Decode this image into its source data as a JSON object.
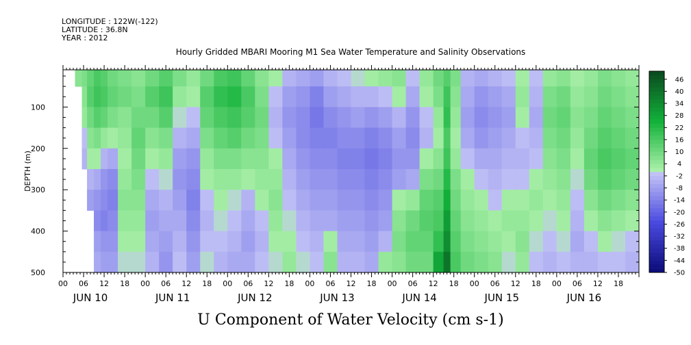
{
  "header": {
    "longitude": "LONGITUDE : 122W(-122)",
    "latitude": "LATITUDE : 36.8N",
    "year": "YEAR : 2012"
  },
  "chart_data": {
    "type": "heatmap",
    "title": "Hourly Gridded MBARI Mooring M1 Sea Water Temperature and Salinity Observations",
    "xlabel": "U Component of Water Velocity (cm s-1)",
    "ylabel": "DEPTH (m)",
    "y_axis": {
      "range": [
        10,
        500
      ],
      "inverted": true,
      "ticks": [
        100,
        200,
        300,
        400,
        500
      ]
    },
    "x_axis": {
      "range_hours": [
        0,
        168
      ],
      "hour_ticks": [
        "00",
        "06",
        "12",
        "18"
      ],
      "days": [
        "JUN 10",
        "JUN 11",
        "JUN 12",
        "JUN 13",
        "JUN 14",
        "JUN 15",
        "JUN 16"
      ]
    },
    "colorbar": {
      "min": -50,
      "max": 50,
      "labels": [
        46,
        40,
        34,
        28,
        22,
        16,
        10,
        4,
        -2,
        -8,
        -14,
        -20,
        -26,
        -32,
        -38,
        -44,
        -50
      ],
      "colors": {
        "strong_positive": "#0a4a1f",
        "positive": "#12b23a",
        "weak_positive": "#a8f0a8",
        "weak_negative": "#c2c2f6",
        "negative": "#4a4ae0",
        "strong_negative": "#0a0a78"
      }
    },
    "profile_columns": [
      {
        "hour": 2,
        "values": [
          null,
          null,
          null,
          null,
          null,
          null,
          null,
          null,
          null,
          null
        ]
      },
      {
        "hour": 5,
        "values": [
          6,
          null,
          null,
          null,
          null,
          null,
          null,
          null,
          null,
          null
        ]
      },
      {
        "hour": 6,
        "values": [
          8,
          6,
          4,
          -2,
          -4,
          null,
          null,
          null,
          null,
          null
        ]
      },
      {
        "hour": 8,
        "values": [
          12,
          14,
          10,
          6,
          2,
          -4,
          -8,
          null,
          null,
          null
        ]
      },
      {
        "hour": 10,
        "values": [
          16,
          18,
          14,
          8,
          2,
          -6,
          -10,
          -12,
          -8,
          -6
        ]
      },
      {
        "hour": 12,
        "values": [
          14,
          16,
          12,
          4,
          -4,
          -10,
          -12,
          -14,
          -10,
          -8
        ]
      },
      {
        "hour": 14,
        "values": [
          10,
          12,
          8,
          2,
          -6,
          -12,
          -14,
          -12,
          -10,
          -8
        ]
      },
      {
        "hour": 18,
        "values": [
          8,
          10,
          6,
          4,
          2,
          4,
          6,
          4,
          2,
          0
        ]
      },
      {
        "hour": 22,
        "values": [
          6,
          8,
          10,
          12,
          10,
          8,
          6,
          4,
          2,
          0
        ]
      },
      {
        "hour": 26,
        "values": [
          10,
          14,
          10,
          6,
          2,
          -2,
          -6,
          -8,
          -6,
          -4
        ]
      },
      {
        "hour": 30,
        "values": [
          14,
          18,
          14,
          8,
          4,
          0,
          -4,
          -6,
          -8,
          -10
        ]
      },
      {
        "hour": 34,
        "values": [
          8,
          4,
          0,
          -4,
          -8,
          -10,
          -8,
          -6,
          -4,
          -2
        ]
      },
      {
        "hour": 38,
        "values": [
          4,
          2,
          -2,
          -6,
          -10,
          -12,
          -14,
          -12,
          -10,
          -8
        ]
      },
      {
        "hour": 42,
        "values": [
          10,
          14,
          12,
          8,
          4,
          2,
          -2,
          -4,
          -2,
          0
        ]
      },
      {
        "hour": 46,
        "values": [
          16,
          20,
          16,
          12,
          8,
          4,
          2,
          0,
          -2,
          -4
        ]
      },
      {
        "hour": 50,
        "values": [
          18,
          22,
          18,
          14,
          8,
          4,
          0,
          -2,
          -4,
          -6
        ]
      },
      {
        "hour": 54,
        "values": [
          12,
          16,
          14,
          10,
          6,
          2,
          -4,
          -6,
          -8,
          -6
        ]
      },
      {
        "hour": 58,
        "values": [
          6,
          8,
          10,
          8,
          6,
          4,
          2,
          -2,
          -4,
          -2
        ]
      },
      {
        "hour": 62,
        "values": [
          2,
          -2,
          -4,
          -2,
          2,
          4,
          6,
          4,
          2,
          0
        ]
      },
      {
        "hour": 66,
        "values": [
          -4,
          -8,
          -10,
          -8,
          -6,
          -4,
          -2,
          0,
          2,
          4
        ]
      },
      {
        "hour": 70,
        "values": [
          -6,
          -10,
          -12,
          -12,
          -10,
          -8,
          -6,
          -4,
          -2,
          0
        ]
      },
      {
        "hour": 74,
        "values": [
          -8,
          -14,
          -16,
          -14,
          -12,
          -10,
          -8,
          -6,
          -4,
          -2
        ]
      },
      {
        "hour": 78,
        "values": [
          -4,
          -8,
          -12,
          -14,
          -12,
          -10,
          -8,
          -6,
          2,
          6
        ]
      },
      {
        "hour": 82,
        "values": [
          -2,
          -6,
          -10,
          -12,
          -14,
          -12,
          -10,
          -8,
          -6,
          -4
        ]
      },
      {
        "hour": 86,
        "values": [
          0,
          -4,
          -8,
          -12,
          -14,
          -12,
          -10,
          -8,
          -6,
          -4
        ]
      },
      {
        "hour": 90,
        "values": [
          2,
          -4,
          -10,
          -14,
          -16,
          -14,
          -12,
          -10,
          -8,
          -6
        ]
      },
      {
        "hour": 94,
        "values": [
          4,
          -2,
          -8,
          -12,
          -14,
          -12,
          -10,
          -8,
          -4,
          4
        ]
      },
      {
        "hour": 98,
        "values": [
          6,
          2,
          -4,
          -8,
          -10,
          -8,
          2,
          6,
          8,
          6
        ]
      },
      {
        "hour": 102,
        "values": [
          -2,
          -6,
          -10,
          -12,
          -10,
          -6,
          4,
          10,
          12,
          10
        ]
      },
      {
        "hour": 106,
        "values": [
          4,
          2,
          -2,
          -4,
          2,
          8,
          12,
          14,
          12,
          10
        ]
      },
      {
        "hour": 110,
        "values": [
          10,
          8,
          4,
          2,
          6,
          10,
          14,
          16,
          20,
          28
        ]
      },
      {
        "hour": 112,
        "values": [
          14,
          18,
          20,
          16,
          18,
          22,
          26,
          30,
          34,
          40
        ]
      },
      {
        "hour": 114,
        "values": [
          8,
          6,
          4,
          2,
          4,
          8,
          10,
          12,
          14,
          16
        ]
      },
      {
        "hour": 118,
        "values": [
          -4,
          -6,
          -8,
          -6,
          -2,
          2,
          4,
          6,
          8,
          10
        ]
      },
      {
        "hour": 122,
        "values": [
          -6,
          -10,
          -12,
          -10,
          -6,
          -2,
          2,
          4,
          6,
          8
        ]
      },
      {
        "hour": 126,
        "values": [
          -4,
          -8,
          -10,
          -8,
          -6,
          -4,
          -2,
          2,
          4,
          6
        ]
      },
      {
        "hour": 130,
        "values": [
          -2,
          -6,
          -8,
          -6,
          -4,
          -2,
          2,
          4,
          2,
          0
        ]
      },
      {
        "hour": 134,
        "values": [
          2,
          4,
          2,
          -2,
          -4,
          -2,
          2,
          4,
          6,
          4
        ]
      },
      {
        "hour": 138,
        "values": [
          -2,
          -4,
          -6,
          -4,
          -2,
          2,
          4,
          2,
          0,
          -2
        ]
      },
      {
        "hour": 142,
        "values": [
          4,
          8,
          10,
          8,
          6,
          4,
          2,
          0,
          -2,
          -4
        ]
      },
      {
        "hour": 146,
        "values": [
          6,
          10,
          12,
          10,
          8,
          6,
          4,
          2,
          0,
          -2
        ]
      },
      {
        "hour": 150,
        "values": [
          2,
          4,
          6,
          4,
          2,
          0,
          -2,
          -4,
          -6,
          -4
        ]
      },
      {
        "hour": 154,
        "values": [
          4,
          6,
          8,
          10,
          12,
          10,
          6,
          2,
          -2,
          -4
        ]
      },
      {
        "hour": 158,
        "values": [
          8,
          10,
          12,
          14,
          16,
          14,
          10,
          6,
          2,
          -2
        ]
      },
      {
        "hour": 162,
        "values": [
          6,
          8,
          10,
          12,
          14,
          12,
          8,
          4,
          0,
          -2
        ]
      },
      {
        "hour": 166,
        "values": [
          4,
          6,
          8,
          10,
          12,
          10,
          6,
          2,
          -2,
          -4
        ]
      }
    ],
    "profile_depths": [
      25,
      75,
      125,
      175,
      225,
      275,
      325,
      375,
      425,
      475
    ]
  }
}
